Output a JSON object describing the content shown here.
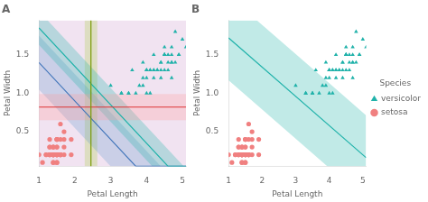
{
  "chart_data": [
    {
      "type": "scatter",
      "title": "A",
      "x_label": "Petal Length",
      "y_label": "Petal Width",
      "xlim": [
        1,
        5.1
      ],
      "ylim": [
        0.05,
        1.95
      ],
      "xticks": [
        1,
        2,
        3,
        4,
        5
      ],
      "yticks": [
        0.5,
        {
          "value": 1.0,
          "label": "1.0"
        },
        1.5
      ],
      "grid": false,
      "series": [
        {
          "type": "band",
          "color": "#CC99CC",
          "x": [
            1,
            5.1
          ],
          "lower": [
            0.05,
            0.05
          ],
          "upper": [
            1.95,
            1.95
          ]
        },
        {
          "type": "band",
          "color": "#AACC44",
          "x": [
            2.27,
            2.63
          ],
          "lower": [
            0.05,
            0.05
          ],
          "upper": [
            1.95,
            1.95
          ]
        },
        {
          "type": "band",
          "color": "#6699CC",
          "x": [
            1,
            3.0,
            4.4,
            5.1
          ],
          "lower": [
            1.05,
            0.05,
            0.05,
            0.05
          ],
          "upper": [
            1.75,
            0.75,
            0.05,
            0.05
          ]
        },
        {
          "type": "band",
          "color": "#20B2AA",
          "x": [
            1,
            1.24,
            4.16,
            5.04,
            5.1
          ],
          "lower": [
            1.63,
            1.51,
            0.05,
            0.05,
            0.05
          ],
          "upper": [
            1.95,
            1.95,
            0.49,
            0.05,
            0.05
          ]
        },
        {
          "type": "band",
          "color": "#FF9999",
          "x": [
            1,
            5.1
          ],
          "lower": [
            0.65,
            0.65
          ],
          "upper": [
            0.99,
            0.99
          ]
        },
        {
          "type": "line",
          "color": "#4477BB",
          "x": [
            1,
            3.7,
            5.1
          ],
          "values": [
            1.4,
            0.05,
            0.05
          ]
        },
        {
          "type": "line",
          "color": "#20B2AA",
          "x": [
            1,
            4.6,
            5.1
          ],
          "values": [
            1.85,
            0.05,
            0.05
          ]
        },
        {
          "type": "line",
          "color": "#DD3333",
          "x": [
            1,
            5.1
          ],
          "values": [
            0.82,
            0.82
          ]
        },
        {
          "type": "line",
          "color": "#779900",
          "x": [
            2.45,
            2.45
          ],
          "values": [
            0.05,
            1.95
          ]
        },
        {
          "type": "scatter",
          "name": "setosa",
          "color": "#F08080",
          "marker": "circle",
          "x": [
            1.4,
            1.4,
            1.3,
            1.5,
            1.4,
            1.7,
            1.4,
            1.5,
            1.4,
            1.5,
            1.5,
            1.6,
            1.4,
            1.1,
            1.2,
            1.5,
            1.3,
            1.4,
            1.7,
            1.5,
            1.7,
            1.5,
            1.0,
            1.7,
            1.9,
            1.6,
            1.6,
            1.5,
            1.4,
            1.6,
            1.6,
            1.5,
            1.5,
            1.4,
            1.5,
            1.2,
            1.3,
            1.4,
            1.3,
            1.5,
            1.3,
            1.3,
            1.3,
            1.6,
            1.9,
            1.4,
            1.6,
            1.4,
            1.5,
            1.4
          ],
          "values": [
            0.2,
            0.2,
            0.2,
            0.2,
            0.2,
            0.4,
            0.3,
            0.2,
            0.2,
            0.1,
            0.2,
            0.2,
            0.1,
            0.1,
            0.2,
            0.4,
            0.4,
            0.3,
            0.3,
            0.3,
            0.2,
            0.4,
            0.2,
            0.5,
            0.2,
            0.2,
            0.4,
            0.2,
            0.2,
            0.2,
            0.2,
            0.4,
            0.1,
            0.2,
            0.2,
            0.2,
            0.2,
            0.1,
            0.2,
            0.3,
            0.3,
            0.3,
            0.2,
            0.6,
            0.4,
            0.3,
            0.2,
            0.2,
            0.2,
            0.2
          ]
        },
        {
          "type": "scatter",
          "name": "versicolor",
          "color": "#20B2AA",
          "marker": "triangle",
          "x": [
            4.7,
            4.5,
            4.9,
            4.0,
            4.6,
            4.5,
            4.7,
            3.3,
            4.6,
            3.9,
            3.5,
            4.2,
            4.0,
            4.7,
            3.6,
            4.4,
            4.5,
            4.1,
            4.5,
            3.9,
            4.8,
            4.0,
            4.9,
            4.7,
            4.3,
            4.4,
            4.8,
            5.0,
            4.5,
            3.5,
            3.8,
            3.7,
            3.9,
            5.1,
            4.5,
            4.5,
            4.7,
            4.4,
            4.1,
            4.0,
            4.4,
            4.6,
            4.0,
            3.3,
            4.2,
            4.2,
            4.2,
            4.3,
            3.0,
            4.1
          ],
          "values": [
            1.4,
            1.5,
            1.5,
            1.3,
            1.5,
            1.3,
            1.6,
            1.0,
            1.3,
            1.4,
            1.0,
            1.5,
            1.0,
            1.4,
            1.3,
            1.4,
            1.5,
            1.0,
            1.5,
            1.1,
            1.8,
            1.3,
            1.5,
            1.2,
            1.3,
            1.4,
            1.4,
            1.7,
            1.5,
            1.0,
            1.1,
            1.0,
            1.2,
            1.6,
            1.5,
            1.6,
            1.5,
            1.3,
            1.3,
            1.3,
            1.2,
            1.4,
            1.2,
            1.0,
            1.3,
            1.2,
            1.3,
            1.3,
            1.1,
            1.3
          ]
        }
      ]
    },
    {
      "type": "scatter",
      "title": "B",
      "x_label": "Petal Length",
      "y_label": "Petal Width",
      "xlim": [
        1,
        5.1
      ],
      "ylim": [
        0.05,
        1.95
      ],
      "xticks": [
        1,
        2,
        3,
        4,
        5
      ],
      "yticks": [
        0.5,
        {
          "value": 1.0,
          "label": "1.0"
        },
        1.5
      ],
      "grid": false,
      "legend": "right",
      "legend_title": "Species",
      "series": [
        {
          "type": "band",
          "color": "#20B2AA",
          "x": [
            1,
            1.8421052631578947,
            3.9473684210526314,
            5.1
          ],
          "lower": [
            1.17,
            0.85,
            0.05,
            0.05
          ],
          "upper": [
            1.95,
            1.95,
            1.15,
            0.712
          ]
        },
        {
          "type": "line",
          "color": "#20B2AA",
          "x": [
            1,
            5.1
          ],
          "values": [
            1.72,
            0.162
          ]
        },
        {
          "type": "scatter",
          "name": "setosa",
          "color": "#F08080",
          "marker": "circle",
          "x": [
            1.4,
            1.4,
            1.3,
            1.5,
            1.4,
            1.7,
            1.4,
            1.5,
            1.4,
            1.5,
            1.5,
            1.6,
            1.4,
            1.1,
            1.2,
            1.5,
            1.3,
            1.4,
            1.7,
            1.5,
            1.7,
            1.5,
            1.0,
            1.7,
            1.9,
            1.6,
            1.6,
            1.5,
            1.4,
            1.6,
            1.6,
            1.5,
            1.5,
            1.4,
            1.5,
            1.2,
            1.3,
            1.4,
            1.3,
            1.5,
            1.3,
            1.3,
            1.3,
            1.6,
            1.9,
            1.4,
            1.6,
            1.4,
            1.5,
            1.4
          ],
          "values": [
            0.2,
            0.2,
            0.2,
            0.2,
            0.2,
            0.4,
            0.3,
            0.2,
            0.2,
            0.1,
            0.2,
            0.2,
            0.1,
            0.1,
            0.2,
            0.4,
            0.4,
            0.3,
            0.3,
            0.3,
            0.2,
            0.4,
            0.2,
            0.5,
            0.2,
            0.2,
            0.4,
            0.2,
            0.2,
            0.2,
            0.2,
            0.4,
            0.1,
            0.2,
            0.2,
            0.2,
            0.2,
            0.1,
            0.2,
            0.3,
            0.3,
            0.3,
            0.2,
            0.6,
            0.4,
            0.3,
            0.2,
            0.2,
            0.2,
            0.2
          ]
        },
        {
          "type": "scatter",
          "name": "versicolor",
          "color": "#20B2AA",
          "marker": "triangle",
          "x": [
            4.7,
            4.5,
            4.9,
            4.0,
            4.6,
            4.5,
            4.7,
            3.3,
            4.6,
            3.9,
            3.5,
            4.2,
            4.0,
            4.7,
            3.6,
            4.4,
            4.5,
            4.1,
            4.5,
            3.9,
            4.8,
            4.0,
            4.9,
            4.7,
            4.3,
            4.4,
            4.8,
            5.0,
            4.5,
            3.5,
            3.8,
            3.7,
            3.9,
            5.1,
            4.5,
            4.5,
            4.7,
            4.4,
            4.1,
            4.0,
            4.4,
            4.6,
            4.0,
            3.3,
            4.2,
            4.2,
            4.2,
            4.3,
            3.0,
            4.1
          ],
          "values": [
            1.4,
            1.5,
            1.5,
            1.3,
            1.5,
            1.3,
            1.6,
            1.0,
            1.3,
            1.4,
            1.0,
            1.5,
            1.0,
            1.4,
            1.3,
            1.4,
            1.5,
            1.0,
            1.5,
            1.1,
            1.8,
            1.3,
            1.5,
            1.2,
            1.3,
            1.4,
            1.4,
            1.7,
            1.5,
            1.0,
            1.1,
            1.0,
            1.2,
            1.6,
            1.5,
            1.6,
            1.5,
            1.3,
            1.3,
            1.3,
            1.2,
            1.4,
            1.2,
            1.0,
            1.3,
            1.2,
            1.3,
            1.3,
            1.1,
            1.3
          ]
        }
      ]
    }
  ]
}
